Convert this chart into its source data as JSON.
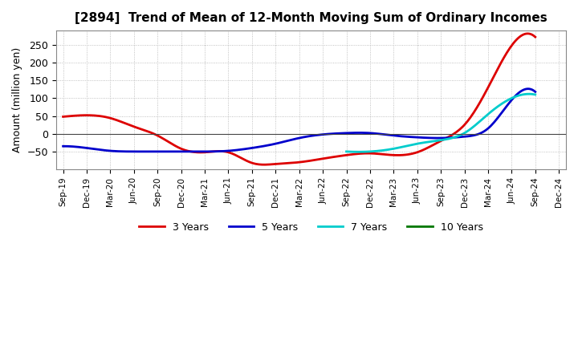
{
  "title": "[2894]  Trend of Mean of 12-Month Moving Sum of Ordinary Incomes",
  "ylabel": "Amount (million yen)",
  "background_color": "#ffffff",
  "grid_color": "#b0b0b0",
  "x_labels": [
    "Sep-19",
    "Dec-19",
    "Mar-20",
    "Jun-20",
    "Sep-20",
    "Dec-20",
    "Mar-21",
    "Jun-21",
    "Sep-21",
    "Dec-21",
    "Mar-22",
    "Jun-22",
    "Sep-22",
    "Dec-22",
    "Mar-23",
    "Jun-23",
    "Sep-23",
    "Dec-23",
    "Mar-24",
    "Jun-24",
    "Sep-24",
    "Dec-24"
  ],
  "ylim": [
    -100,
    290
  ],
  "yticks": [
    -50,
    0,
    50,
    100,
    150,
    200,
    250
  ],
  "series": {
    "3 Years": {
      "color": "#dd0000",
      "x": [
        0,
        1,
        2,
        3,
        4,
        5,
        6,
        7,
        8,
        9,
        10,
        11,
        12,
        13,
        14,
        15,
        16,
        17,
        18,
        19,
        20,
        21
      ],
      "y": [
        48,
        52,
        44,
        20,
        -5,
        -42,
        -52,
        -52,
        -82,
        -85,
        -80,
        -70,
        -60,
        -55,
        -60,
        -52,
        -20,
        25,
        130,
        248,
        272,
        null
      ]
    },
    "5 Years": {
      "color": "#0000cc",
      "x": [
        0,
        1,
        2,
        3,
        4,
        5,
        6,
        7,
        8,
        9,
        10,
        11,
        12,
        13,
        14,
        15,
        16,
        17,
        18,
        19,
        20,
        21
      ],
      "y": [
        -35,
        -40,
        -48,
        -50,
        -50,
        -50,
        -50,
        -48,
        -40,
        -28,
        -12,
        -2,
        2,
        2,
        -5,
        -10,
        -12,
        -8,
        15,
        95,
        118,
        null
      ]
    },
    "7 Years": {
      "color": "#00cccc",
      "x": [
        0,
        1,
        2,
        3,
        4,
        5,
        6,
        7,
        8,
        9,
        10,
        11,
        12,
        13,
        14,
        15,
        16,
        17,
        18,
        19,
        20,
        21
      ],
      "y": [
        null,
        null,
        null,
        null,
        null,
        null,
        null,
        null,
        null,
        null,
        null,
        null,
        -50,
        -50,
        -42,
        -28,
        -18,
        2,
        55,
        100,
        110,
        null
      ]
    },
    "10 Years": {
      "color": "#007700",
      "x": [
        0,
        1,
        2,
        3,
        4,
        5,
        6,
        7,
        8,
        9,
        10,
        11,
        12,
        13,
        14,
        15,
        16,
        17,
        18,
        19,
        20,
        21
      ],
      "y": [
        null,
        null,
        null,
        null,
        null,
        null,
        null,
        null,
        null,
        null,
        null,
        null,
        null,
        null,
        null,
        null,
        null,
        null,
        null,
        null,
        null,
        null
      ]
    }
  },
  "legend_labels": [
    "3 Years",
    "5 Years",
    "7 Years",
    "10 Years"
  ],
  "legend_colors": [
    "#dd0000",
    "#0000cc",
    "#00cccc",
    "#007700"
  ]
}
